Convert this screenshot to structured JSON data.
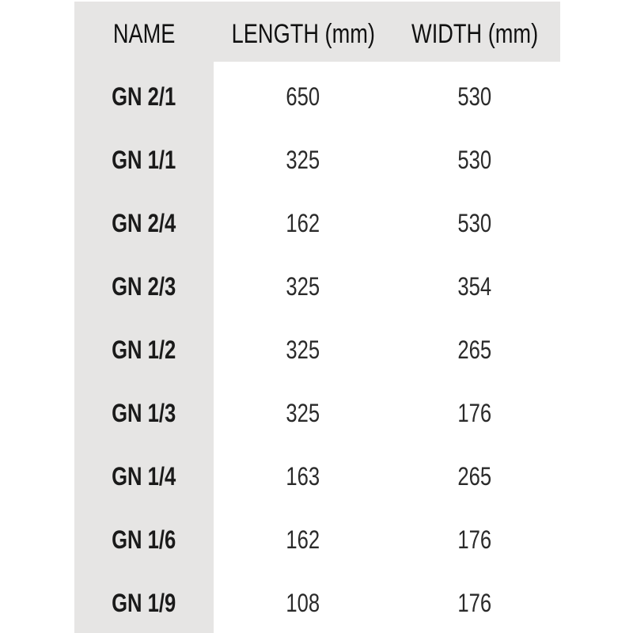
{
  "table": {
    "headers": [
      "NAME",
      "LENGTH (mm)",
      "WIDTH (mm)"
    ],
    "rows": [
      [
        "GN 2/1",
        "650",
        "530"
      ],
      [
        "GN 1/1",
        "325",
        "530"
      ],
      [
        "GN 2/4",
        "162",
        "530"
      ],
      [
        "GN 2/3",
        "325",
        "354"
      ],
      [
        "GN 1/2",
        "325",
        "265"
      ],
      [
        "GN 1/3",
        "325",
        "176"
      ],
      [
        "GN 1/4",
        "163",
        "265"
      ],
      [
        "GN 1/6",
        "162",
        "176"
      ],
      [
        "GN 1/9",
        "108",
        "176"
      ]
    ]
  },
  "colors": {
    "header_background": "#e6e5e4",
    "text": "#1a1a1a"
  }
}
